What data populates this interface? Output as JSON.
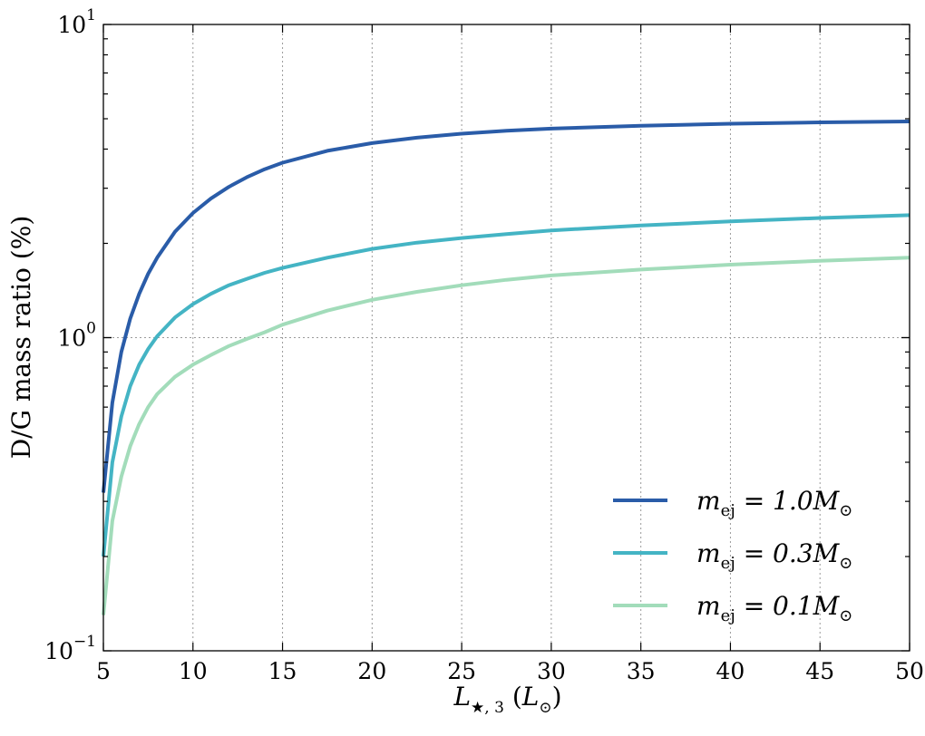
{
  "chart_data": {
    "type": "line",
    "title": "",
    "xlabel": "L_{★,3} (L_⊙)",
    "ylabel": "D/G mass ratio (%)",
    "xlim": [
      5,
      50
    ],
    "ylim": [
      0.1,
      10
    ],
    "yscale": "log",
    "grid": true,
    "legend_position": "lower-right",
    "xticks": [
      5,
      10,
      15,
      20,
      25,
      30,
      35,
      40,
      45,
      50
    ],
    "xtick_labels": [
      "5",
      "10",
      "15",
      "20",
      "25",
      "30",
      "35",
      "40",
      "45",
      "50"
    ],
    "yticks": [
      {
        "value": 0.1,
        "base": "10",
        "exp": "−1"
      },
      {
        "value": 1,
        "base": "10",
        "exp": "0"
      },
      {
        "value": 10,
        "base": "10",
        "exp": "1"
      }
    ],
    "x": [
      5,
      5.5,
      6,
      6.5,
      7,
      7.5,
      8,
      9,
      10,
      11,
      12,
      13,
      14,
      15,
      17.5,
      20,
      22.5,
      25,
      27.5,
      30,
      35,
      40,
      45,
      50
    ],
    "series": [
      {
        "name": "m_ej = 1.0M_⊙",
        "color": "#2a5ca8",
        "values": [
          0.32,
          0.62,
          0.9,
          1.15,
          1.38,
          1.6,
          1.8,
          2.18,
          2.5,
          2.78,
          3.03,
          3.25,
          3.45,
          3.62,
          3.95,
          4.18,
          4.35,
          4.48,
          4.58,
          4.65,
          4.75,
          4.82,
          4.87,
          4.9
        ]
      },
      {
        "name": "m_ej = 0.3M_⊙",
        "color": "#44b4c4",
        "values": [
          0.2,
          0.4,
          0.56,
          0.7,
          0.82,
          0.92,
          1.01,
          1.16,
          1.28,
          1.38,
          1.47,
          1.54,
          1.61,
          1.67,
          1.8,
          1.92,
          2.01,
          2.08,
          2.14,
          2.2,
          2.28,
          2.35,
          2.41,
          2.46
        ]
      },
      {
        "name": "m_ej = 0.1M_⊙",
        "color": "#a2dcba",
        "values": [
          0.13,
          0.26,
          0.36,
          0.45,
          0.53,
          0.6,
          0.66,
          0.75,
          0.82,
          0.88,
          0.94,
          0.99,
          1.04,
          1.1,
          1.22,
          1.32,
          1.4,
          1.47,
          1.53,
          1.58,
          1.65,
          1.71,
          1.76,
          1.8
        ]
      }
    ],
    "legend": [
      {
        "var": "m",
        "sub": "ej",
        "rest": " = 1.0M",
        "tail": "⊙"
      },
      {
        "var": "m",
        "sub": "ej",
        "rest": " = 0.3M",
        "tail": "⊙"
      },
      {
        "var": "m",
        "sub": "ej",
        "rest": " = 0.1M",
        "tail": "⊙"
      }
    ]
  }
}
